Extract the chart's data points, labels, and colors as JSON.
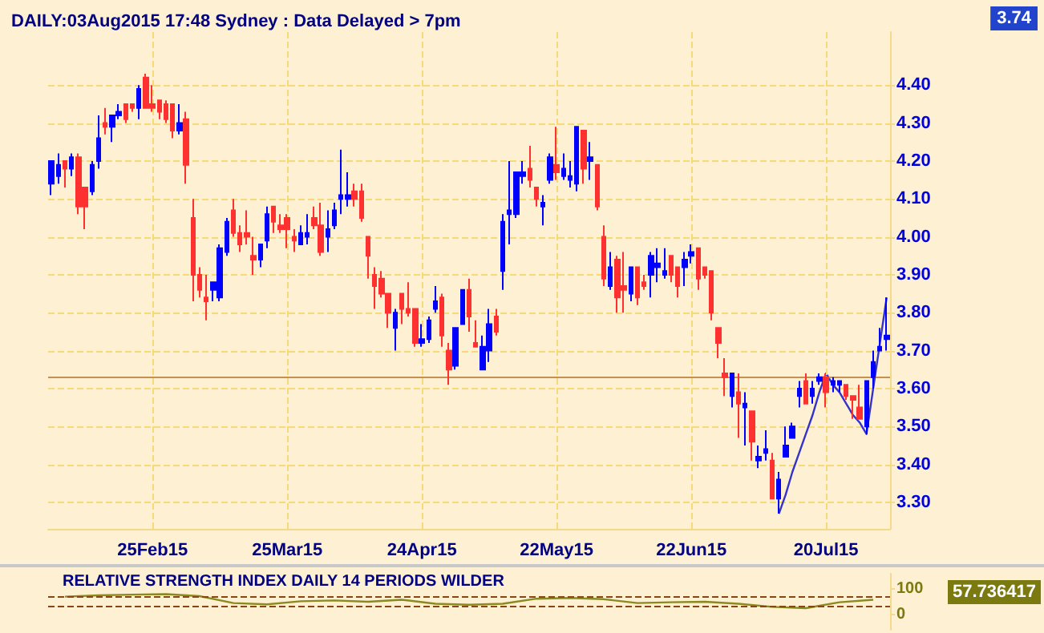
{
  "chart_data": [
    {
      "type": "candlestick",
      "title": "DAILY:03Aug2015 17:48 Sydney : Data Delayed > 7pm",
      "annotations": [
        "3.74"
      ],
      "categories": [
        null,
        null,
        null,
        null,
        null,
        null,
        null,
        null,
        null,
        null,
        null,
        null,
        null,
        null,
        null,
        "25Feb15",
        null,
        null,
        null,
        null,
        null,
        null,
        null,
        null,
        null,
        null,
        null,
        null,
        null,
        null,
        null,
        null,
        null,
        null,
        null,
        "25Mar15",
        null,
        null,
        null,
        null,
        null,
        null,
        null,
        null,
        null,
        null,
        null,
        null,
        null,
        null,
        null,
        null,
        null,
        null,
        null,
        "24Apr15",
        null,
        null,
        null,
        null,
        null,
        null,
        null,
        null,
        null,
        null,
        null,
        null,
        null,
        null,
        null,
        null,
        null,
        null,
        null,
        "22May15",
        null,
        null,
        null,
        null,
        null,
        null,
        null,
        null,
        null,
        null,
        null,
        null,
        null,
        null,
        null,
        null,
        null,
        null,
        null,
        "22Jun15",
        null,
        null,
        null,
        null,
        null,
        null,
        null,
        null,
        null,
        null,
        null,
        null,
        null,
        null,
        null,
        null,
        null,
        null,
        null,
        "20Jul15",
        null,
        null,
        null,
        null,
        null,
        null,
        null,
        null,
        null
      ],
      "ohlc": [
        [
          4.14,
          4.2,
          4.11,
          4.2
        ],
        [
          4.16,
          4.22,
          4.14,
          4.19
        ],
        [
          4.2,
          4.2,
          4.13,
          4.18
        ],
        [
          4.18,
          4.22,
          4.16,
          4.21
        ],
        [
          4.21,
          4.22,
          4.06,
          4.08
        ],
        [
          4.13,
          4.13,
          4.02,
          4.08
        ],
        [
          4.12,
          4.2,
          4.11,
          4.19
        ],
        [
          4.2,
          4.32,
          4.18,
          4.26
        ],
        [
          4.3,
          4.34,
          4.27,
          4.29
        ],
        [
          4.29,
          4.32,
          4.25,
          4.32
        ],
        [
          4.32,
          4.35,
          4.31,
          4.33
        ],
        [
          4.35,
          4.35,
          4.3,
          4.31
        ],
        [
          4.35,
          4.35,
          4.33,
          4.34
        ],
        [
          4.34,
          4.4,
          4.31,
          4.39
        ],
        [
          4.42,
          4.43,
          4.34,
          4.34
        ],
        [
          4.35,
          4.4,
          4.33,
          4.34
        ],
        [
          4.36,
          4.36,
          4.31,
          4.33
        ],
        [
          4.35,
          4.36,
          4.3,
          4.31
        ],
        [
          4.35,
          4.35,
          4.26,
          4.28
        ],
        [
          4.28,
          4.35,
          4.27,
          4.3
        ],
        [
          4.31,
          4.33,
          4.14,
          4.19
        ],
        [
          4.05,
          4.1,
          3.83,
          3.9
        ],
        [
          3.9,
          3.92,
          3.84,
          3.86
        ],
        [
          3.84,
          3.9,
          3.78,
          3.83
        ],
        [
          3.86,
          3.88,
          3.83,
          3.88
        ],
        [
          3.84,
          3.98,
          3.83,
          3.97
        ],
        [
          3.96,
          4.05,
          3.95,
          4.04
        ],
        [
          4.07,
          4.1,
          4.0,
          4.01
        ],
        [
          4.01,
          4.03,
          3.96,
          3.98
        ],
        [
          4.01,
          4.07,
          3.98,
          4.0
        ],
        [
          3.95,
          4.0,
          3.9,
          3.94
        ],
        [
          3.94,
          3.98,
          3.92,
          3.98
        ],
        [
          3.99,
          4.08,
          3.97,
          4.06
        ],
        [
          4.08,
          4.08,
          4.01,
          4.04
        ],
        [
          4.03,
          4.06,
          4.01,
          4.02
        ],
        [
          4.05,
          4.06,
          3.97,
          4.02
        ],
        [
          4.0,
          4.02,
          3.96,
          3.99
        ],
        [
          3.98,
          4.03,
          3.98,
          4.01
        ],
        [
          4.0,
          4.06,
          3.98,
          4.01
        ],
        [
          4.05,
          4.08,
          4.02,
          4.03
        ],
        [
          4.03,
          4.09,
          3.95,
          3.96
        ],
        [
          4.0,
          4.07,
          3.96,
          4.02
        ],
        [
          4.03,
          4.09,
          4.02,
          4.07
        ],
        [
          4.1,
          4.23,
          4.06,
          4.11
        ],
        [
          4.1,
          4.17,
          4.08,
          4.11
        ],
        [
          4.12,
          4.14,
          4.08,
          4.1
        ],
        [
          4.12,
          4.14,
          4.04,
          4.05
        ],
        [
          4.0,
          4.0,
          3.89,
          3.95
        ],
        [
          3.9,
          3.92,
          3.81,
          3.87
        ],
        [
          3.89,
          3.91,
          3.84,
          3.85
        ],
        [
          3.85,
          3.85,
          3.76,
          3.8
        ],
        [
          3.76,
          3.81,
          3.7,
          3.8
        ],
        [
          3.85,
          3.85,
          3.77,
          3.81
        ],
        [
          3.81,
          3.88,
          3.79,
          3.8
        ],
        [
          3.81,
          3.81,
          3.71,
          3.72
        ],
        [
          3.72,
          3.77,
          3.71,
          3.73
        ],
        [
          3.73,
          3.79,
          3.72,
          3.78
        ],
        [
          3.81,
          3.87,
          3.8,
          3.83
        ],
        [
          3.84,
          3.85,
          3.71,
          3.74
        ],
        [
          3.7,
          3.72,
          3.61,
          3.65
        ],
        [
          3.66,
          3.76,
          3.65,
          3.76
        ],
        [
          3.77,
          3.86,
          3.77,
          3.86
        ],
        [
          3.86,
          3.89,
          3.75,
          3.79
        ],
        [
          3.72,
          3.78,
          3.71,
          3.71
        ],
        [
          3.65,
          3.74,
          3.65,
          3.71
        ],
        [
          3.7,
          3.81,
          3.67,
          3.77
        ],
        [
          3.79,
          3.81,
          3.74,
          3.75
        ],
        [
          3.91,
          4.06,
          3.86,
          4.04
        ],
        [
          4.06,
          4.2,
          3.98,
          4.07
        ],
        [
          4.06,
          4.17,
          4.05,
          4.17
        ],
        [
          4.16,
          4.2,
          4.14,
          4.17
        ],
        [
          4.18,
          4.24,
          4.13,
          4.15
        ],
        [
          4.13,
          4.13,
          4.08,
          4.1
        ],
        [
          4.08,
          4.11,
          4.03,
          4.09
        ],
        [
          4.15,
          4.22,
          4.14,
          4.21
        ],
        [
          4.19,
          4.29,
          4.15,
          4.17
        ],
        [
          4.16,
          4.22,
          4.15,
          4.18
        ],
        [
          4.15,
          4.2,
          4.13,
          4.16
        ],
        [
          4.14,
          4.29,
          4.12,
          4.29
        ],
        [
          4.28,
          4.28,
          4.14,
          4.18
        ],
        [
          4.2,
          4.25,
          4.15,
          4.21
        ],
        [
          4.19,
          4.19,
          4.07,
          4.08
        ],
        [
          4.0,
          4.03,
          3.87,
          3.89
        ],
        [
          3.87,
          3.96,
          3.86,
          3.92
        ],
        [
          3.94,
          3.95,
          3.8,
          3.84
        ],
        [
          3.87,
          3.96,
          3.8,
          3.86
        ],
        [
          3.85,
          3.92,
          3.83,
          3.92
        ],
        [
          3.92,
          3.92,
          3.82,
          3.84
        ],
        [
          3.88,
          3.9,
          3.86,
          3.87
        ],
        [
          3.9,
          3.96,
          3.84,
          3.95
        ],
        [
          3.92,
          3.97,
          3.88,
          3.93
        ],
        [
          3.9,
          3.97,
          3.89,
          3.91
        ],
        [
          3.95,
          3.95,
          3.88,
          3.9
        ],
        [
          3.92,
          3.92,
          3.84,
          3.87
        ],
        [
          3.92,
          3.96,
          3.87,
          3.94
        ],
        [
          3.95,
          3.98,
          3.93,
          3.96
        ],
        [
          3.97,
          3.97,
          3.86,
          3.89
        ],
        [
          3.92,
          3.92,
          3.89,
          3.9
        ],
        [
          3.91,
          3.91,
          3.78,
          3.8
        ],
        [
          3.76,
          3.76,
          3.68,
          3.72
        ],
        [
          3.64,
          3.68,
          3.58,
          3.63
        ],
        [
          3.58,
          3.64,
          3.55,
          3.64
        ],
        [
          3.59,
          3.64,
          3.47,
          3.56
        ],
        [
          3.55,
          3.59,
          3.45,
          3.56
        ],
        [
          3.54,
          3.54,
          3.41,
          3.46
        ],
        [
          3.41,
          3.45,
          3.39,
          3.42
        ],
        [
          3.43,
          3.49,
          3.41,
          3.44
        ],
        [
          3.41,
          3.43,
          3.31,
          3.31
        ],
        [
          3.31,
          3.38,
          3.27,
          3.36
        ],
        [
          3.42,
          3.5,
          3.42,
          3.45
        ],
        [
          3.47,
          3.51,
          3.47,
          3.5
        ],
        [
          3.58,
          3.62,
          3.55,
          3.6
        ],
        [
          3.62,
          3.64,
          3.56,
          3.56
        ],
        [
          3.58,
          3.62,
          3.56,
          3.6
        ],
        [
          3.62,
          3.64,
          3.61,
          3.63
        ],
        [
          3.63,
          3.64,
          3.55,
          3.59
        ],
        [
          3.61,
          3.63,
          3.59,
          3.62
        ],
        [
          3.61,
          3.62,
          3.59,
          3.62
        ],
        [
          3.61,
          3.61,
          3.57,
          3.58
        ],
        [
          3.58,
          3.58,
          3.52,
          3.57
        ],
        [
          3.55,
          3.61,
          3.52,
          3.52
        ],
        [
          3.5,
          3.62,
          3.48,
          3.62
        ],
        [
          3.63,
          3.7,
          3.6,
          3.67
        ],
        [
          3.7,
          3.76,
          3.7,
          3.71
        ],
        [
          3.73,
          3.84,
          3.7,
          3.74
        ]
      ],
      "colors": [
        "#0000ff",
        "#0000ff",
        "#ff3030",
        "#0000ff",
        "#ff3030",
        "#ff3030",
        "#0000ff",
        "#0000ff",
        "#ff3030",
        "#0000ff",
        "#0000ff",
        "#ff3030",
        "#ff3030",
        "#0000ff",
        "#ff3030",
        "#ff3030",
        "#ff3030",
        "#ff3030",
        "#ff3030",
        "#0000ff",
        "#ff3030",
        "#ff3030",
        "#ff3030",
        "#ff3030",
        "#0000ff",
        "#0000ff",
        "#0000ff",
        "#ff3030",
        "#ff3030",
        "#ff3030",
        "#ff3030",
        "#0000ff",
        "#0000ff",
        "#ff3030",
        "#ff3030",
        "#ff3030",
        "#ff3030",
        "#0000ff",
        "#0000ff",
        "#ff3030",
        "#ff3030",
        "#0000ff",
        "#0000ff",
        "#0000ff",
        "#0000ff",
        "#ff3030",
        "#ff3030",
        "#ff3030",
        "#ff3030",
        "#ff3030",
        "#ff3030",
        "#0000ff",
        "#ff3030",
        "#ff3030",
        "#ff3030",
        "#0000ff",
        "#0000ff",
        "#0000ff",
        "#ff3030",
        "#ff3030",
        "#0000ff",
        "#0000ff",
        "#ff3030",
        "#ff3030",
        "#0000ff",
        "#0000ff",
        "#ff3030",
        "#0000ff",
        "#0000ff",
        "#0000ff",
        "#0000ff",
        "#ff3030",
        "#ff3030",
        "#0000ff",
        "#0000ff",
        "#ff3030",
        "#0000ff",
        "#0000ff",
        "#0000ff",
        "#ff3030",
        "#0000ff",
        "#ff3030",
        "#ff3030",
        "#0000ff",
        "#ff3030",
        "#ff3030",
        "#0000ff",
        "#ff3030",
        "#ff3030",
        "#0000ff",
        "#0000ff",
        "#0000ff",
        "#ff3030",
        "#ff3030",
        "#0000ff",
        "#0000ff",
        "#ff3030",
        "#ff3030",
        "#ff3030",
        "#ff3030",
        "#ff3030",
        "#0000ff",
        "#ff3030",
        "#0000ff",
        "#ff3030",
        "#0000ff",
        "#0000ff",
        "#ff3030",
        "#0000ff",
        "#0000ff",
        "#0000ff",
        "#0000ff",
        "#ff3030",
        "#0000ff",
        "#0000ff",
        "#ff3030",
        "#0000ff",
        "#0000ff",
        "#ff3030",
        "#ff3030",
        "#ff3030",
        "#0000ff",
        "#0000ff",
        "#0000ff",
        "#0000ff"
      ],
      "series": [
        {
          "type": "line",
          "color": "#3333cc",
          "marker": "none",
          "values": [
            null,
            null,
            null,
            null,
            null,
            null,
            null,
            null,
            null,
            null,
            null,
            null,
            null,
            null,
            null,
            null,
            null,
            null,
            null,
            null,
            null,
            null,
            null,
            null,
            null,
            null,
            null,
            null,
            null,
            null,
            null,
            null,
            null,
            null,
            null,
            null,
            null,
            null,
            null,
            null,
            null,
            null,
            null,
            null,
            null,
            null,
            null,
            null,
            null,
            null,
            null,
            null,
            null,
            null,
            null,
            null,
            null,
            null,
            null,
            null,
            null,
            null,
            null,
            null,
            null,
            null,
            null,
            null,
            null,
            null,
            null,
            null,
            null,
            null,
            null,
            null,
            null,
            null,
            null,
            null,
            null,
            null,
            null,
            null,
            null,
            null,
            null,
            null,
            null,
            null,
            null,
            null,
            null,
            null,
            null,
            null,
            null,
            null,
            null,
            null,
            null,
            null,
            null,
            null,
            null,
            null,
            null,
            null,
            3.27,
            3.32,
            3.38,
            3.43,
            3.48,
            3.53,
            3.59,
            3.64,
            3.61,
            3.59,
            3.56,
            3.53,
            3.51,
            3.48,
            3.6,
            3.72,
            3.84
          ]
        }
      ],
      "ylim": [
        3.23,
        4.54
      ],
      "yticks": [
        {
          "value": 3.3,
          "label": "3.30"
        },
        {
          "value": 3.4,
          "label": "3.40"
        },
        {
          "value": 3.5,
          "label": "3.50"
        },
        {
          "value": 3.6,
          "label": "3.60"
        },
        {
          "value": 3.7,
          "label": "3.70"
        },
        {
          "value": 3.8,
          "label": "3.80"
        },
        {
          "value": 3.9,
          "label": "3.90"
        },
        {
          "value": 4.0,
          "label": "4.00"
        },
        {
          "value": 4.1,
          "label": "4.10"
        },
        {
          "value": 4.2,
          "label": "4.20"
        },
        {
          "value": 4.3,
          "label": "4.30"
        },
        {
          "value": 4.4,
          "label": "4.40"
        }
      ],
      "ref_lines": [
        {
          "axis": "y",
          "value": 3.63,
          "color": "#c89050"
        }
      ],
      "grid": true
    },
    {
      "type": "line",
      "title": "RELATIVE STRENGTH INDEX DAILY 14 PERIODS WILDER",
      "annotations": [
        "57.736417"
      ],
      "categories": [
        null,
        null,
        null,
        null,
        null,
        null,
        null,
        null,
        null,
        null,
        null,
        null,
        null,
        null,
        null,
        null,
        null,
        null,
        null,
        null,
        null,
        null,
        null,
        null,
        null
      ],
      "series": [
        {
          "color": "#8a8a20",
          "values": [
            70,
            75,
            78,
            80,
            72,
            45,
            40,
            52,
            55,
            50,
            58,
            42,
            38,
            42,
            62,
            65,
            60,
            45,
            48,
            50,
            42,
            30,
            25,
            48,
            57.736417
          ]
        }
      ],
      "ylim": [
        -60,
        160
      ],
      "yticks": [
        0,
        100
      ],
      "tick_labels": "y",
      "ref_lines": [
        {
          "axis": "y",
          "value": 70,
          "color": "#8b4513",
          "line_style": "dashed"
        },
        {
          "axis": "y",
          "value": 30,
          "color": "#8b4513",
          "line_style": "dashed"
        }
      ],
      "marker": "none",
      "grid": false
    }
  ]
}
